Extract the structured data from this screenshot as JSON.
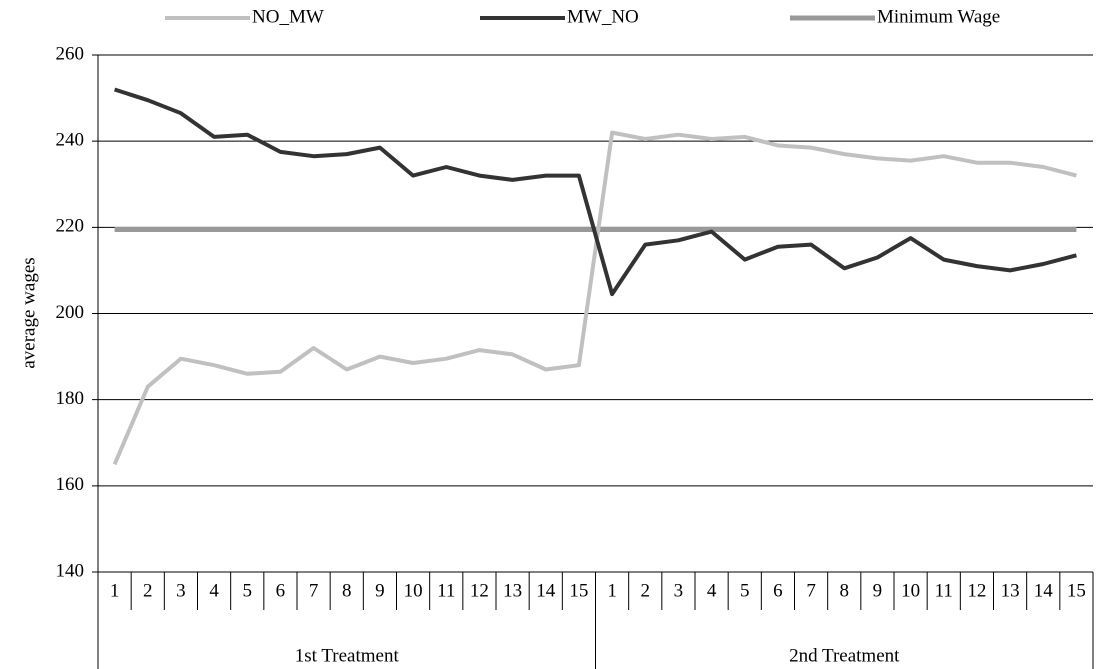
{
  "chart_data": {
    "type": "line",
    "y_label": "average wages",
    "groups": [
      {
        "name": "1st Treatment",
        "categories": [
          "1",
          "2",
          "3",
          "4",
          "5",
          "6",
          "7",
          "8",
          "9",
          "10",
          "11",
          "12",
          "13",
          "14",
          "15"
        ]
      },
      {
        "name": "2nd Treatment",
        "categories": [
          "1",
          "2",
          "3",
          "4",
          "5",
          "6",
          "7",
          "8",
          "9",
          "10",
          "11",
          "12",
          "13",
          "14",
          "15"
        ]
      }
    ],
    "series": [
      {
        "name": "NO_MW",
        "color": "#c0c0c0",
        "values": [
          165,
          183,
          189.5,
          188,
          186,
          186.5,
          192,
          187,
          190,
          188.5,
          189.5,
          191.5,
          190.5,
          187,
          188,
          242,
          240.5,
          241.5,
          240.5,
          241,
          239,
          238.5,
          237,
          236,
          235.5,
          236.5,
          235,
          235,
          234,
          232
        ]
      },
      {
        "name": "MW_NO",
        "color": "#333333",
        "values": [
          252,
          249.5,
          246.5,
          241,
          241.5,
          237.5,
          236.5,
          237,
          238.5,
          232,
          234,
          232,
          231,
          232,
          232,
          204.5,
          216,
          217,
          219,
          212.5,
          215.5,
          216,
          210.5,
          213,
          217.5,
          212.5,
          211,
          210,
          211.5,
          213.5
        ]
      },
      {
        "name": "Minimum Wage",
        "color": "#999999",
        "values": [
          219.5,
          219.5,
          219.5,
          219.5,
          219.5,
          219.5,
          219.5,
          219.5,
          219.5,
          219.5,
          219.5,
          219.5,
          219.5,
          219.5,
          219.5,
          219.5,
          219.5,
          219.5,
          219.5,
          219.5,
          219.5,
          219.5,
          219.5,
          219.5,
          219.5,
          219.5,
          219.5,
          219.5,
          219.5,
          219.5
        ]
      }
    ],
    "ylim": [
      140,
      260
    ],
    "yticks": [
      140,
      160,
      180,
      200,
      220,
      240,
      260
    ],
    "grid": true,
    "legend": "top"
  }
}
